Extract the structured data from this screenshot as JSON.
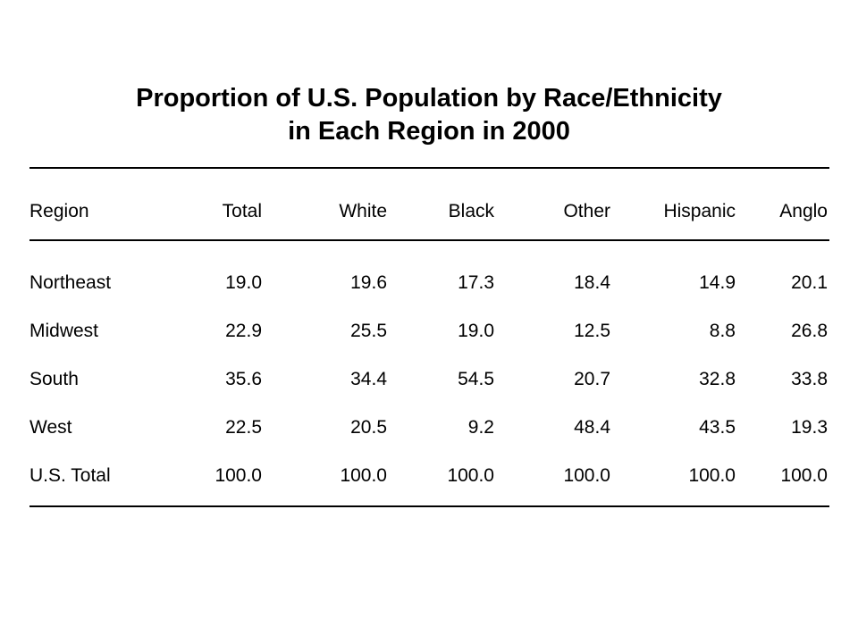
{
  "chart_data": {
    "type": "table",
    "title_lines": [
      "Proportion of U.S. Population by Race/Ethnicity",
      "in Each Region in 2000"
    ],
    "columns": [
      "Region",
      "Total",
      "White",
      "Black",
      "Other",
      "Hispanic",
      "Anglo"
    ],
    "rows": [
      [
        "Northeast",
        "19.0",
        "19.6",
        "17.3",
        "18.4",
        "14.9",
        "20.1"
      ],
      [
        "Midwest",
        "22.9",
        "25.5",
        "19.0",
        "12.5",
        "8.8",
        "26.8"
      ],
      [
        "South",
        "35.6",
        "34.4",
        "54.5",
        "20.7",
        "32.8",
        "33.8"
      ],
      [
        "West",
        "22.5",
        "20.5",
        "9.2",
        "48.4",
        "43.5",
        "19.3"
      ],
      [
        "U.S. Total",
        "100.0",
        "100.0",
        "100.0",
        "100.0",
        "100.0",
        "100.0"
      ]
    ]
  }
}
